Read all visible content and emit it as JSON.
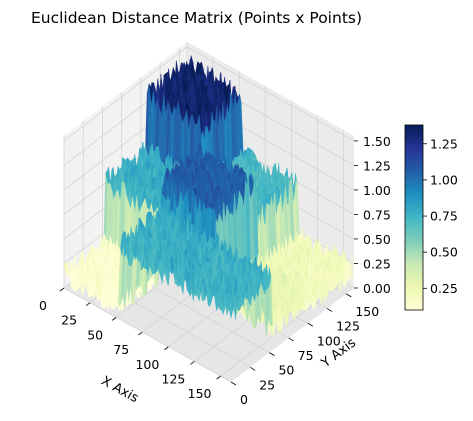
{
  "chart_data": {
    "type": "surface3d",
    "title": "Euclidean Distance Matrix (Points x Points)",
    "xlabel": "X Axis",
    "ylabel": "Y Axis",
    "zlabel": "",
    "xlim": [
      0,
      160
    ],
    "ylim": [
      0,
      160
    ],
    "zlim": [
      0,
      1.55
    ],
    "x_ticks": [
      "0",
      "25",
      "50",
      "75",
      "100",
      "125",
      "150"
    ],
    "y_ticks": [
      "0",
      "25",
      "50",
      "75",
      "100",
      "125",
      "150"
    ],
    "z_ticks": [
      "0.00",
      "0.25",
      "0.50",
      "0.75",
      "1.00",
      "1.25",
      "1.50"
    ],
    "colorbar_ticks": [
      "0.25",
      "0.50",
      "0.75",
      "1.00",
      "1.25"
    ],
    "colorbar_range": [
      0.1,
      1.38
    ],
    "colormap": "YlGnBu",
    "colormap_stops": [
      "#ffffd9",
      "#edf8b1",
      "#c7e9b4",
      "#7fcdbb",
      "#41b6c4",
      "#1d91c0",
      "#225ea8",
      "#253494",
      "#081d58"
    ],
    "grid": true,
    "blocks": [
      {
        "x_range": [
          0,
          53
        ],
        "y_range": [
          0,
          53
        ],
        "level": 0.12
      },
      {
        "x_range": [
          53,
          106
        ],
        "y_range": [
          0,
          53
        ],
        "level": 0.75
      },
      {
        "x_range": [
          106,
          160
        ],
        "y_range": [
          0,
          53
        ],
        "level": 0.75
      },
      {
        "x_range": [
          0,
          53
        ],
        "y_range": [
          53,
          106
        ],
        "level": 0.75
      },
      {
        "x_range": [
          53,
          106
        ],
        "y_range": [
          53,
          106
        ],
        "level": 1.05
      },
      {
        "x_range": [
          106,
          160
        ],
        "y_range": [
          53,
          106
        ],
        "level": 0.25
      },
      {
        "x_range": [
          0,
          53
        ],
        "y_range": [
          106,
          160
        ],
        "level": 1.3
      },
      {
        "x_range": [
          53,
          106
        ],
        "y_range": [
          106,
          160
        ],
        "level": 0.7
      },
      {
        "x_range": [
          106,
          160
        ],
        "y_range": [
          106,
          160
        ],
        "level": 0.2
      }
    ],
    "noise_amplitude": 0.15
  }
}
